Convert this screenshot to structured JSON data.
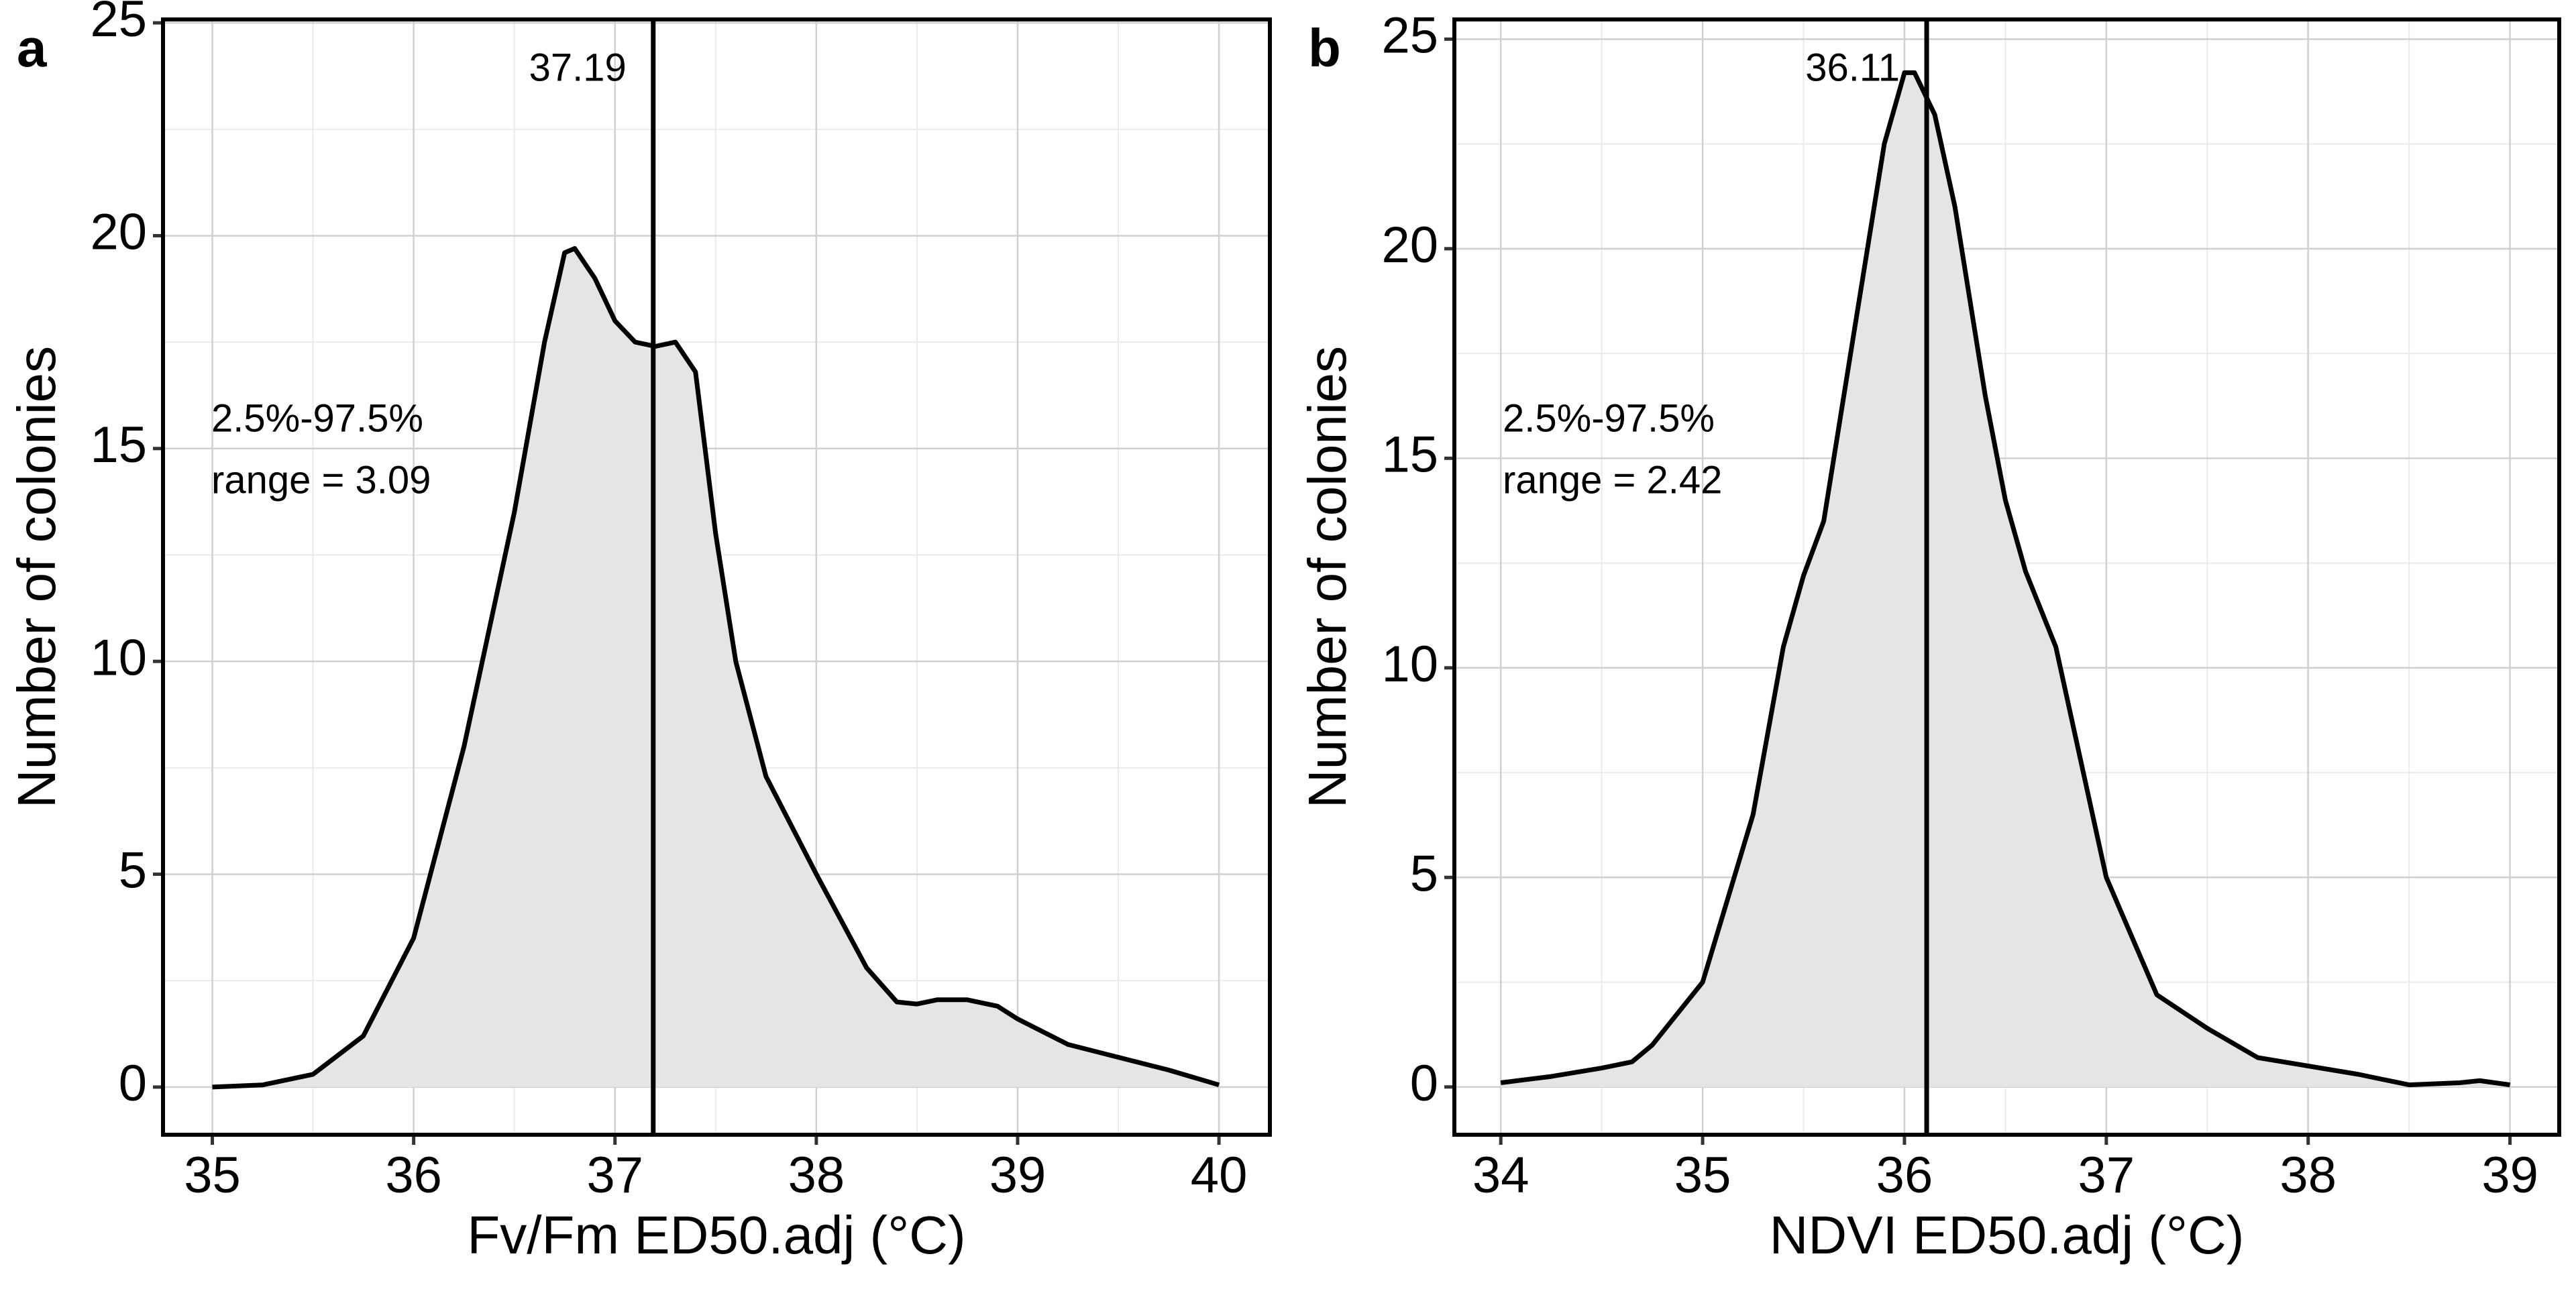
{
  "chart_data": [
    {
      "type": "area",
      "panel_label": "a",
      "xlabel": "Fv/Fm ED50.adj (°C)",
      "ylabel": "Number of colonies",
      "x": [
        35.0,
        35.25,
        35.5,
        35.75,
        36.0,
        36.25,
        36.5,
        36.65,
        36.75,
        36.8,
        36.9,
        37.0,
        37.1,
        37.2,
        37.3,
        37.4,
        37.5,
        37.6,
        37.75,
        38.0,
        38.25,
        38.4,
        38.5,
        38.6,
        38.75,
        38.9,
        39.0,
        39.25,
        39.5,
        39.75,
        40.0
      ],
      "values": [
        0,
        0.05,
        0.3,
        1.2,
        3.5,
        8,
        13.5,
        17.5,
        19.6,
        19.7,
        19,
        18,
        17.5,
        17.4,
        17.5,
        16.8,
        13,
        10,
        7.3,
        5,
        2.8,
        2.0,
        1.95,
        2.05,
        2.05,
        1.9,
        1.6,
        1.0,
        0.7,
        0.4,
        0.05
      ],
      "xlim": [
        34.755,
        40.253
      ],
      "ylim": [
        -1.12,
        25.08
      ],
      "xticks": [
        35,
        36,
        37,
        38,
        39,
        40
      ],
      "yticks": [
        0,
        5,
        10,
        15,
        20,
        25
      ],
      "vline": 37.19,
      "annotations": [
        "2.5%-97.5%",
        "range = 3.09"
      ],
      "grid": true,
      "color": "#000000",
      "fill": "#e5e5e5"
    },
    {
      "type": "area",
      "panel_label": "b",
      "xlabel": "NDVI ED50.adj (°C)",
      "ylabel": "Number of colonies",
      "x": [
        34.0,
        34.25,
        34.5,
        34.65,
        34.75,
        35.0,
        35.25,
        35.4,
        35.5,
        35.6,
        35.75,
        35.9,
        36.0,
        36.05,
        36.15,
        36.25,
        36.4,
        36.5,
        36.6,
        36.75,
        37.0,
        37.25,
        37.5,
        37.75,
        38.0,
        38.25,
        38.5,
        38.75,
        38.85,
        39.0
      ],
      "values": [
        0.1,
        0.25,
        0.45,
        0.6,
        1.0,
        2.5,
        6.5,
        10.5,
        12.2,
        13.5,
        18,
        22.5,
        24.2,
        24.2,
        23.2,
        21,
        16.5,
        14,
        12.3,
        10.5,
        5,
        2.2,
        1.4,
        0.7,
        0.5,
        0.3,
        0.05,
        0.1,
        0.15,
        0.05
      ],
      "xlim": [
        33.77,
        39.244
      ],
      "ylim": [
        -1.14,
        25.47
      ],
      "xticks": [
        34,
        35,
        36,
        37,
        38,
        39
      ],
      "yticks": [
        0,
        5,
        10,
        15,
        20,
        25
      ],
      "vline": 36.11,
      "annotations": [
        "2.5%-97.5%",
        "range = 2.42"
      ],
      "grid": true,
      "color": "#000000",
      "fill": "#e5e5e5"
    }
  ]
}
